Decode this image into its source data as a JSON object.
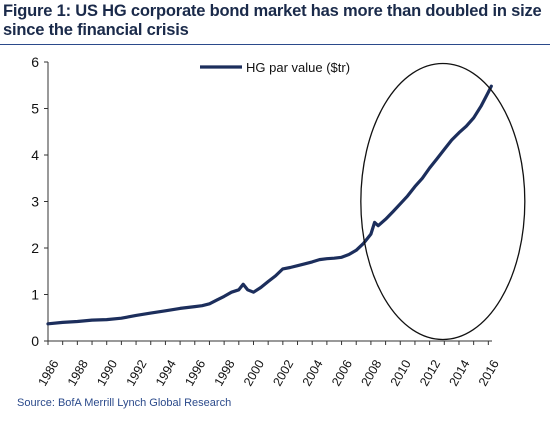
{
  "title": "Figure 1: US HG corporate bond market has more than doubled in size since the financial crisis",
  "source": "Source: BofA Merrill Lynch Global Research",
  "colors": {
    "series": "#1c2e5c",
    "title": "#1a2a4a",
    "rule": "#2b4a8b"
  },
  "annotation": "ellipse highlighting post-2008 growth",
  "chart_data": {
    "type": "line",
    "title": "",
    "xlabel": "",
    "ylabel": "",
    "ylim": [
      0,
      6
    ],
    "xlim": [
      1986,
      2016.25
    ],
    "yticks": [
      "0",
      "1",
      "2",
      "3",
      "4",
      "5",
      "6"
    ],
    "xticks": [
      "1986",
      "1988",
      "1990",
      "1992",
      "1994",
      "1996",
      "1998",
      "2000",
      "2002",
      "2004",
      "2006",
      "2008",
      "2010",
      "2012",
      "2014",
      "2016"
    ],
    "grid": false,
    "legend": "top-center",
    "series": [
      {
        "name": "HG par value ($tr)",
        "color": "#1c2e5c",
        "x": [
          1986,
          1987,
          1988,
          1989,
          1990,
          1991,
          1992,
          1993,
          1994,
          1995,
          1996,
          1996.5,
          1997,
          1997.5,
          1998,
          1998.5,
          1999,
          1999.3,
          1999.6,
          2000,
          2000.5,
          2001,
          2001.5,
          2002,
          2002.5,
          2003,
          2003.5,
          2004,
          2004.5,
          2005,
          2005.5,
          2006,
          2006.5,
          2007,
          2007.5,
          2008,
          2008.25,
          2008.5,
          2009,
          2009.5,
          2010,
          2010.5,
          2011,
          2011.5,
          2012,
          2012.5,
          2013,
          2013.5,
          2014,
          2014.5,
          2015,
          2015.5,
          2016,
          2016.2
        ],
        "values": [
          0.37,
          0.4,
          0.42,
          0.45,
          0.46,
          0.49,
          0.55,
          0.6,
          0.65,
          0.7,
          0.74,
          0.76,
          0.8,
          0.88,
          0.96,
          1.05,
          1.1,
          1.22,
          1.1,
          1.05,
          1.15,
          1.28,
          1.4,
          1.55,
          1.58,
          1.62,
          1.66,
          1.7,
          1.75,
          1.77,
          1.78,
          1.8,
          1.86,
          1.95,
          2.1,
          2.3,
          2.55,
          2.48,
          2.62,
          2.78,
          2.95,
          3.12,
          3.32,
          3.5,
          3.72,
          3.92,
          4.12,
          4.32,
          4.48,
          4.62,
          4.8,
          5.05,
          5.35,
          5.48
        ]
      }
    ]
  }
}
